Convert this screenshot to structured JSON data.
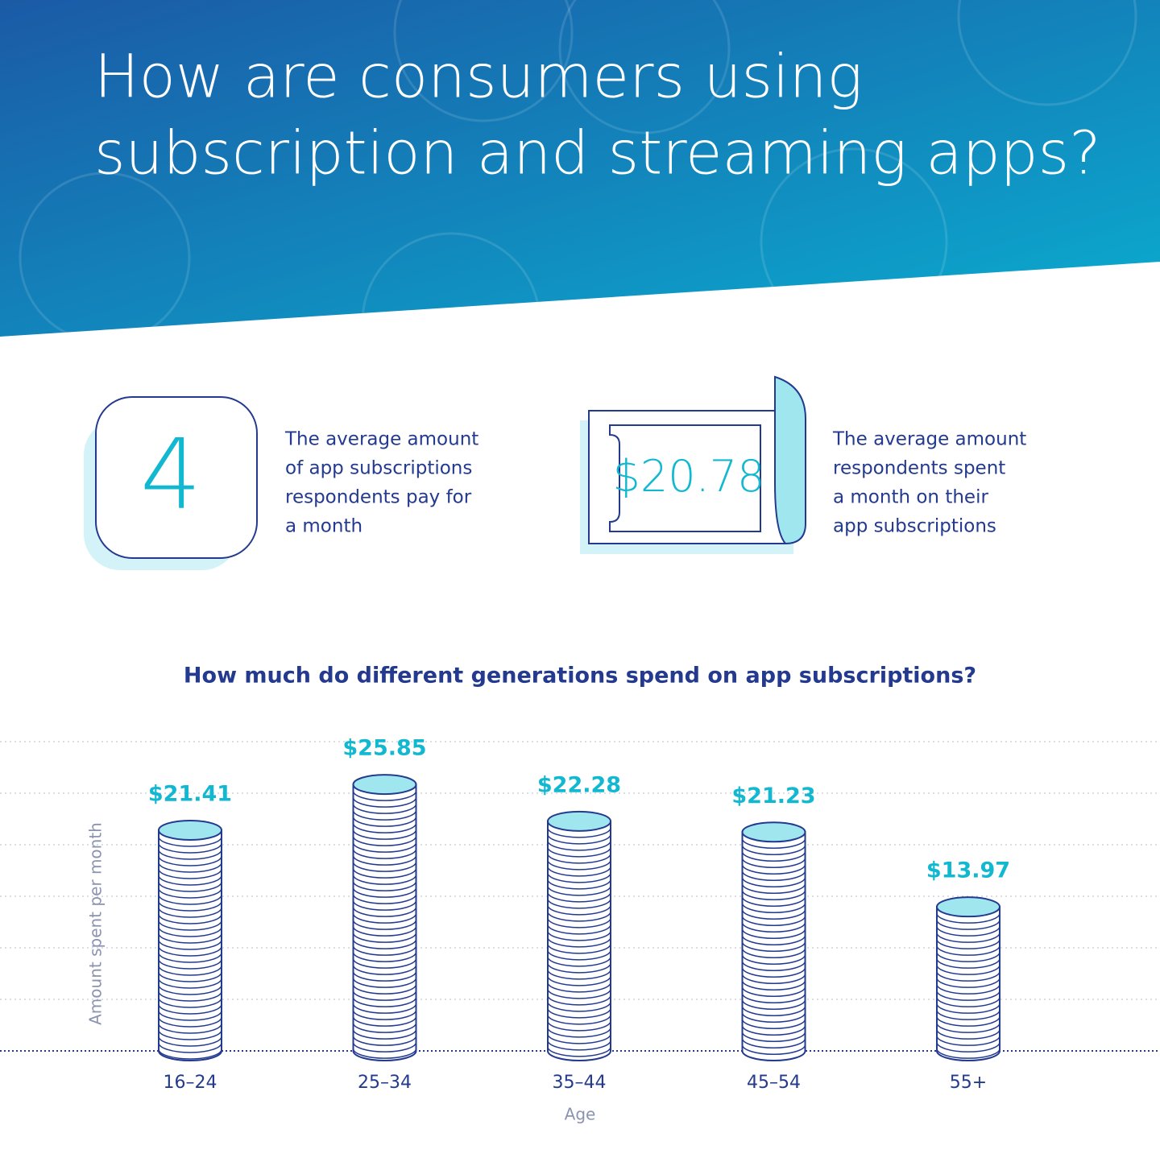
{
  "header": {
    "title_lines": [
      "How are consumers using",
      "subscription and streaming apps?"
    ]
  },
  "stats": [
    {
      "value": "4",
      "lines": [
        "The average amount",
        "of app subscriptions",
        "respondents pay for",
        "a month"
      ]
    },
    {
      "value": "$20.78",
      "lines": [
        "The average amount",
        "respondents spent",
        "a month on their",
        "app subscriptions"
      ]
    }
  ],
  "chart_data": {
    "type": "bar",
    "title": "How much do different generations spend on app subscriptions?",
    "x_label": "Age",
    "y_label": "Amount spent per month",
    "categories": [
      "16–24",
      "25–34",
      "35–44",
      "45–54",
      "55+"
    ],
    "values": [
      21.41,
      25.85,
      22.28,
      21.23,
      13.97
    ],
    "value_labels": [
      "$21.41",
      "$25.85",
      "$22.28",
      "$21.23",
      "$13.97"
    ],
    "color": "#9fe6ef",
    "ylim": [
      0,
      30
    ],
    "yticks": [
      0,
      5,
      10,
      15,
      20,
      25,
      30
    ],
    "grid": true
  }
}
